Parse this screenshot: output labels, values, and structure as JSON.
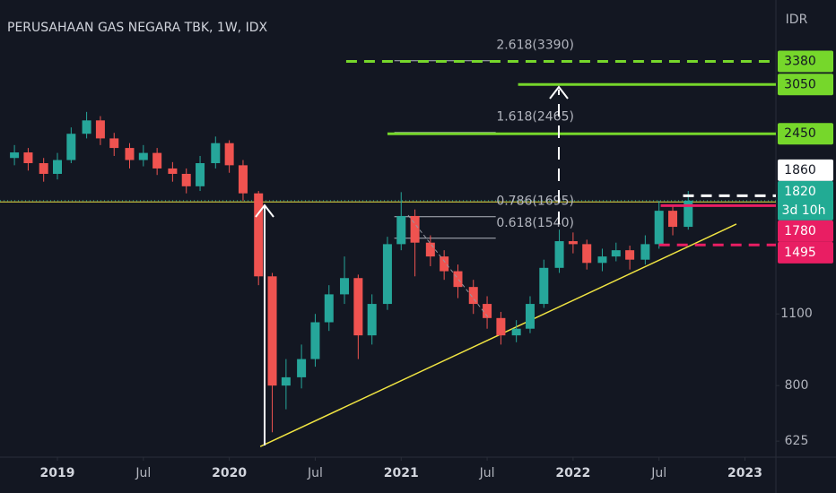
{
  "chart_data": {
    "type": "candlestick",
    "title": "PERUSAHAAN GAS NEGARA TBK, 1W, IDX",
    "currency": "IDR",
    "log_scale": true,
    "grid": false,
    "up_color": "#26a69a",
    "down_color": "#ef5350",
    "xlim": [
      2018.666,
      2023.18
    ],
    "xticks": [
      2019,
      {
        "value": 2019.5,
        "label": "Jul"
      },
      2020,
      {
        "value": 2020.5,
        "label": "Jul"
      },
      2021,
      {
        "value": 2021.5,
        "label": "Jul"
      },
      2022,
      {
        "value": 2022.5,
        "label": "Jul"
      },
      2023
    ],
    "ylim": [
      582,
      4440
    ],
    "yticks": [
      625,
      800,
      1100
    ],
    "x": [
      2018.75,
      2018.83,
      2018.92,
      2019.0,
      2019.08,
      2019.17,
      2019.25,
      2019.33,
      2019.42,
      2019.5,
      2019.58,
      2019.67,
      2019.75,
      2019.83,
      2019.92,
      2020.0,
      2020.08,
      2020.17,
      2020.25,
      2020.33,
      2020.42,
      2020.5,
      2020.58,
      2020.67,
      2020.75,
      2020.83,
      2020.92,
      2021.0,
      2021.08,
      2021.17,
      2021.25,
      2021.33,
      2021.42,
      2021.5,
      2021.58,
      2021.67,
      2021.75,
      2021.83,
      2021.92,
      2022.0,
      2022.08,
      2022.17,
      2022.25,
      2022.33,
      2022.42,
      2022.5,
      2022.58,
      2022.67
    ],
    "open": [
      2200,
      2255,
      2150,
      2050,
      2180,
      2450,
      2600,
      2400,
      2300,
      2180,
      2250,
      2100,
      2050,
      1940,
      2150,
      2350,
      2130,
      1880,
      1300,
      800,
      830,
      900,
      1060,
      1200,
      1290,
      1000,
      1150,
      1500,
      1700,
      1510,
      1420,
      1330,
      1240,
      1150,
      1080,
      1000,
      1030,
      1150,
      1350,
      1520,
      1500,
      1380,
      1420,
      1460,
      1400,
      1500,
      1740,
      1620
    ],
    "high": [
      2330,
      2300,
      2200,
      2250,
      2520,
      2700,
      2650,
      2460,
      2350,
      2330,
      2300,
      2160,
      2100,
      2220,
      2420,
      2380,
      2180,
      1900,
      1320,
      900,
      960,
      1100,
      1250,
      1420,
      1310,
      1200,
      1550,
      1890,
      1750,
      1560,
      1460,
      1370,
      1280,
      1190,
      1110,
      1070,
      1190,
      1400,
      1600,
      1580,
      1530,
      1470,
      1510,
      1490,
      1560,
      1820,
      1780,
      1900
    ],
    "low": [
      2130,
      2080,
      1980,
      2000,
      2150,
      2400,
      2330,
      2220,
      2100,
      2120,
      2040,
      1980,
      1880,
      1900,
      2100,
      2060,
      1820,
      1250,
      650,
      720,
      790,
      870,
      1020,
      1150,
      900,
      960,
      1120,
      1460,
      1300,
      1360,
      1280,
      1180,
      1100,
      1030,
      960,
      970,
      1010,
      1130,
      1320,
      1440,
      1340,
      1330,
      1390,
      1340,
      1370,
      1470,
      1560,
      1600
    ],
    "close": [
      2255,
      2150,
      2050,
      2180,
      2450,
      2600,
      2400,
      2300,
      2180,
      2250,
      2100,
      2050,
      1940,
      2150,
      2350,
      2130,
      1880,
      1300,
      800,
      830,
      900,
      1060,
      1200,
      1290,
      1000,
      1150,
      1500,
      1700,
      1510,
      1420,
      1330,
      1240,
      1150,
      1080,
      1000,
      1030,
      1150,
      1350,
      1520,
      1500,
      1380,
      1420,
      1460,
      1400,
      1500,
      1740,
      1620,
      1820
    ],
    "horizontal_line": {
      "value": 1810,
      "color": "#f0e442"
    },
    "trendline": {
      "x": [
        2020.18,
        2022.95
      ],
      "y": [
        610,
        1640
      ],
      "color": "#f0e442"
    },
    "fib_range": [
      2020.96,
      2021.55
    ],
    "fib_levels": [
      {
        "text": "2.618(3390)",
        "value": 3390
      },
      {
        "text": "1.618(2465)",
        "value": 2465
      },
      {
        "text": "0.786(1695)",
        "value": 1695
      },
      {
        "text": "0.618(1540)",
        "value": 1540
      }
    ],
    "price_lines": [
      {
        "value": 3380,
        "color": "#76d72b",
        "dashed": true,
        "start": 2020.68
      },
      {
        "value": 3050,
        "color": "#76d72b",
        "dashed": false,
        "start": 2021.68
      },
      {
        "value": 2450,
        "color": "#76d72b",
        "dashed": false,
        "start": 2020.92
      },
      {
        "value": 1860,
        "color": "#ffffff",
        "dashed": true,
        "start": 2022.64
      },
      {
        "value": 1780,
        "color": "#e91e63",
        "dashed": false,
        "start": 2022.51
      },
      {
        "value": 1495,
        "color": "#e91e63",
        "dashed": true,
        "start": 2022.5
      }
    ],
    "current": {
      "value": 1820,
      "countdown": "3d 10h",
      "color": "#22ab94"
    }
  }
}
